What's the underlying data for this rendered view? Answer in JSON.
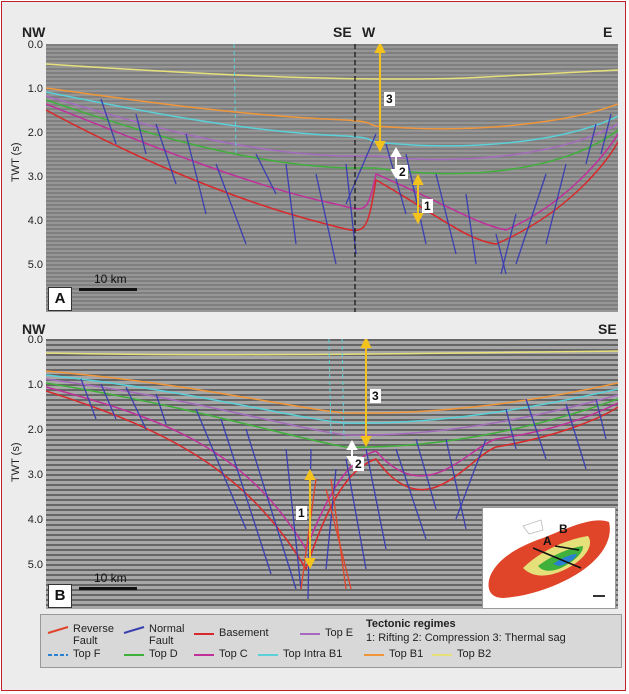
{
  "panel_a": {
    "letter": "A",
    "left_label": "NW",
    "mid_label_left": "SE",
    "mid_label_right": "W",
    "right_label": "E",
    "y_axis_title": "TWT (s)",
    "y_ticks": [
      "0.0",
      "1.0",
      "2.0",
      "3.0",
      "4.0",
      "5.0"
    ],
    "scale_label": "10 km",
    "regime_numbers": [
      "3",
      "2",
      "1"
    ]
  },
  "panel_b": {
    "letter": "B",
    "left_label": "NW",
    "right_label": "SE",
    "y_axis_title": "TWT (s)",
    "y_ticks": [
      "0.0",
      "1.0",
      "2.0",
      "3.0",
      "4.0",
      "5.0"
    ],
    "scale_label": "10 km",
    "regime_numbers": [
      "3",
      "2",
      "1"
    ]
  },
  "inset": {
    "labels": [
      "A",
      "B"
    ]
  },
  "legend": {
    "items": [
      {
        "label": "Reverse Fault",
        "color": "#e0452a",
        "style": "solid"
      },
      {
        "label": "Normal Fault",
        "color": "#3a3fb0",
        "style": "solid"
      },
      {
        "label": "Basement",
        "color": "#d9282b",
        "style": "solid"
      },
      {
        "label": "Top E",
        "color": "#a66bbf",
        "style": "solid"
      },
      {
        "label": "Top F",
        "color": "#2a7fd0",
        "style": "dashed"
      },
      {
        "label": "Top D",
        "color": "#3fb03a",
        "style": "solid"
      },
      {
        "label": "Top C",
        "color": "#c0309a",
        "style": "solid"
      },
      {
        "label": "Top Intra B1",
        "color": "#5ad0d8",
        "style": "solid"
      },
      {
        "label": "Top B1",
        "color": "#f0963a",
        "style": "solid"
      },
      {
        "label": "Top B2",
        "color": "#e6e07a",
        "style": "solid"
      }
    ],
    "regimes_title": "Tectonic regimes",
    "regimes_text": "1: Rifting 2: Compression 3: Thermal sag"
  }
}
